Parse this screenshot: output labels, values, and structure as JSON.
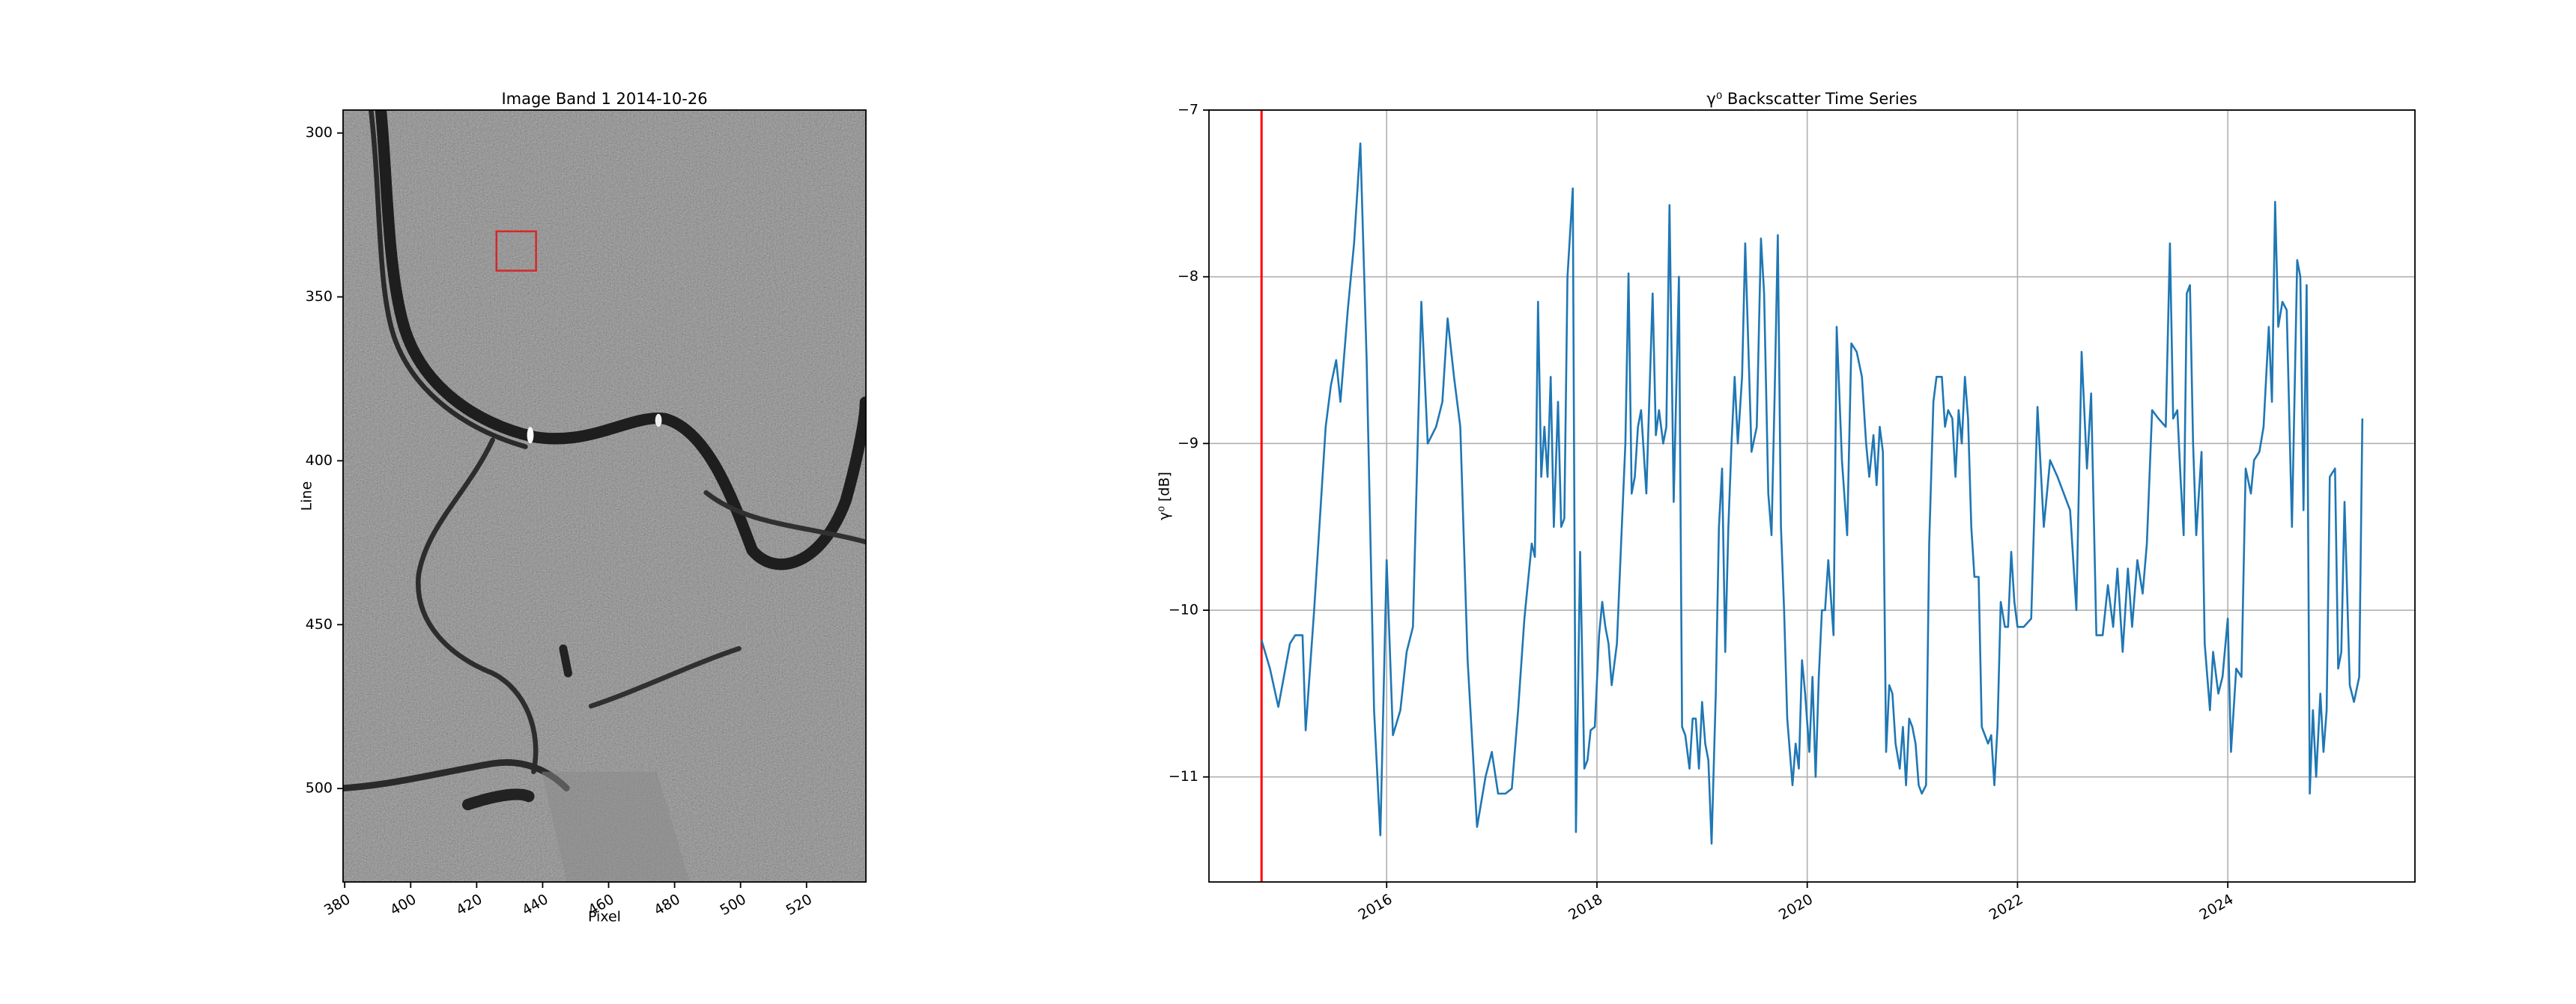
{
  "chart_data": [
    {
      "type": "image",
      "title": "Image Band 1 2014-10-26",
      "xlabel": "Pixel",
      "ylabel": "Line",
      "xlim": [
        379.5,
        538
      ],
      "ylim": [
        528.5,
        293
      ],
      "xticks": [
        380,
        400,
        420,
        440,
        460,
        480,
        500,
        520
      ],
      "yticks": [
        300,
        350,
        400,
        450,
        500
      ],
      "box": {
        "x": [
          426,
          438
        ],
        "y": [
          330,
          342
        ],
        "color": "#d62728"
      }
    },
    {
      "type": "line",
      "title": "γ⁰ Backscatter Time Series",
      "ylabel": "γ⁰ [dB]",
      "color": "#1f77b4",
      "grid": true,
      "xlim": [
        2014.31,
        2025.78
      ],
      "ylim": [
        -11.63,
        -7
      ],
      "xticks": [
        2016,
        2018,
        2020,
        2022,
        2024
      ],
      "yticks": [
        {
          "value": -7,
          "label": "−7"
        },
        {
          "value": -8,
          "label": "−8"
        },
        {
          "value": -9,
          "label": "−9"
        },
        {
          "value": -10,
          "label": "−10"
        },
        {
          "value": -11,
          "label": "−11"
        }
      ],
      "vline": {
        "x": 2014.81,
        "color": "#ff0000"
      },
      "x": [
        2014.81,
        2014.89,
        2014.97,
        2015.08,
        2015.13,
        2015.2,
        2015.23,
        2015.31,
        2015.36,
        2015.42,
        2015.47,
        2015.52,
        2015.56,
        2015.63,
        2015.69,
        2015.75,
        2015.81,
        2015.88,
        2015.94,
        2016,
        2016.06,
        2016.13,
        2016.19,
        2016.25,
        2016.33,
        2016.39,
        2016.47,
        2016.53,
        2016.58,
        2016.64,
        2016.7,
        2016.77,
        2016.86,
        2016.94,
        2017,
        2017.06,
        2017.13,
        2017.19,
        2017.25,
        2017.31,
        2017.38,
        2017.41,
        2017.44,
        2017.47,
        2017.5,
        2017.53,
        2017.56,
        2017.59,
        2017.63,
        2017.66,
        2017.69,
        2017.72,
        2017.77,
        2017.8,
        2017.84,
        2017.88,
        2017.91,
        2017.94,
        2017.98,
        2018.02,
        2018.05,
        2018.08,
        2018.11,
        2018.14,
        2018.19,
        2018.23,
        2018.27,
        2018.3,
        2018.33,
        2018.36,
        2018.39,
        2018.42,
        2018.47,
        2018.53,
        2018.56,
        2018.59,
        2018.63,
        2018.66,
        2018.69,
        2018.73,
        2018.78,
        2018.81,
        2018.84,
        2018.88,
        2018.91,
        2018.94,
        2018.97,
        2019,
        2019.03,
        2019.06,
        2019.09,
        2019.13,
        2019.16,
        2019.19,
        2019.22,
        2019.25,
        2019.28,
        2019.31,
        2019.34,
        2019.38,
        2019.41,
        2019.47,
        2019.52,
        2019.56,
        2019.59,
        2019.63,
        2019.66,
        2019.69,
        2019.72,
        2019.75,
        2019.78,
        2019.81,
        2019.86,
        2019.89,
        2019.92,
        2019.95,
        2019.98,
        2020.02,
        2020.05,
        2020.08,
        2020.11,
        2020.14,
        2020.17,
        2020.2,
        2020.25,
        2020.28,
        2020.33,
        2020.38,
        2020.42,
        2020.47,
        2020.52,
        2020.56,
        2020.59,
        2020.63,
        2020.66,
        2020.69,
        2020.72,
        2020.75,
        2020.78,
        2020.81,
        2020.84,
        2020.88,
        2020.91,
        2020.94,
        2020.97,
        2021,
        2021.03,
        2021.06,
        2021.09,
        2021.13,
        2021.16,
        2021.2,
        2021.23,
        2021.28,
        2021.31,
        2021.34,
        2021.38,
        2021.41,
        2021.44,
        2021.47,
        2021.5,
        2021.53,
        2021.56,
        2021.59,
        2021.63,
        2021.66,
        2021.69,
        2021.72,
        2021.75,
        2021.78,
        2021.81,
        2021.84,
        2021.88,
        2021.91,
        2021.94,
        2021.97,
        2022,
        2022.06,
        2022.13,
        2022.19,
        2022.25,
        2022.31,
        2022.38,
        2022.44,
        2022.5,
        2022.56,
        2022.61,
        2022.66,
        2022.7,
        2022.75,
        2022.81,
        2022.86,
        2022.91,
        2022.95,
        2023,
        2023.05,
        2023.09,
        2023.14,
        2023.19,
        2023.23,
        2023.28,
        2023.34,
        2023.41,
        2023.45,
        2023.48,
        2023.52,
        2023.55,
        2023.58,
        2023.61,
        2023.64,
        2023.67,
        2023.7,
        2023.75,
        2023.78,
        2023.83,
        2023.86,
        2023.91,
        2023.95,
        2024,
        2024.03,
        2024.08,
        2024.13,
        2024.17,
        2024.22,
        2024.25,
        2024.3,
        2024.34,
        2024.39,
        2024.42,
        2024.45,
        2024.48,
        2024.52,
        2024.56,
        2024.61,
        2024.66,
        2024.69,
        2024.72,
        2024.75,
        2024.78,
        2024.81,
        2024.84,
        2024.88,
        2024.91,
        2024.94,
        2024.97,
        2025.02,
        2025.05,
        2025.08,
        2025.11,
        2025.16,
        2025.2,
        2025.25,
        2025.28
      ],
      "values": [
        -10.18,
        -10.35,
        -10.58,
        -10.2,
        -10.15,
        -10.15,
        -10.72,
        -10.0,
        -9.5,
        -8.9,
        -8.65,
        -8.5,
        -8.75,
        -8.2,
        -7.8,
        -7.2,
        -8.5,
        -10.6,
        -11.35,
        -9.7,
        -10.75,
        -10.6,
        -10.25,
        -10.1,
        -8.15,
        -9.0,
        -8.9,
        -8.75,
        -8.25,
        -8.6,
        -8.9,
        -10.3,
        -11.3,
        -11.0,
        -10.85,
        -11.1,
        -11.1,
        -11.07,
        -10.6,
        -10.05,
        -9.6,
        -9.68,
        -8.15,
        -9.2,
        -8.9,
        -9.2,
        -8.6,
        -9.5,
        -8.75,
        -9.5,
        -9.45,
        -8.0,
        -7.47,
        -11.33,
        -9.65,
        -10.95,
        -10.9,
        -10.72,
        -10.7,
        -10.15,
        -9.95,
        -10.1,
        -10.2,
        -10.45,
        -10.2,
        -9.6,
        -9.0,
        -7.98,
        -9.3,
        -9.2,
        -8.9,
        -8.8,
        -9.3,
        -8.1,
        -8.95,
        -8.8,
        -9.0,
        -8.9,
        -7.57,
        -9.35,
        -8.0,
        -10.7,
        -10.75,
        -10.95,
        -10.65,
        -10.65,
        -10.95,
        -10.55,
        -10.8,
        -10.9,
        -11.4,
        -10.5,
        -9.5,
        -9.15,
        -10.25,
        -9.5,
        -9.0,
        -8.6,
        -9.0,
        -8.6,
        -7.8,
        -9.05,
        -8.9,
        -7.77,
        -8.1,
        -9.3,
        -9.55,
        -8.7,
        -7.75,
        -9.5,
        -10.0,
        -10.65,
        -11.05,
        -10.8,
        -10.95,
        -10.3,
        -10.5,
        -10.85,
        -10.4,
        -11.0,
        -10.4,
        -10.0,
        -10.0,
        -9.7,
        -10.15,
        -8.3,
        -9.1,
        -9.55,
        -8.4,
        -8.45,
        -8.6,
        -9.0,
        -9.2,
        -8.95,
        -9.25,
        -8.9,
        -9.05,
        -10.85,
        -10.45,
        -10.5,
        -10.8,
        -10.95,
        -10.7,
        -11.05,
        -10.65,
        -10.7,
        -10.8,
        -11.05,
        -11.1,
        -11.05,
        -9.6,
        -8.75,
        -8.6,
        -8.6,
        -8.9,
        -8.8,
        -8.85,
        -9.2,
        -8.8,
        -9.0,
        -8.6,
        -8.85,
        -9.5,
        -9.8,
        -9.8,
        -10.7,
        -10.75,
        -10.8,
        -10.75,
        -11.05,
        -10.7,
        -9.95,
        -10.1,
        -10.1,
        -9.65,
        -9.95,
        -10.1,
        -10.1,
        -10.05,
        -8.78,
        -9.5,
        -9.1,
        -9.2,
        -9.3,
        -9.4,
        -10.0,
        -8.45,
        -9.15,
        -8.7,
        -10.15,
        -10.15,
        -9.85,
        -10.1,
        -9.75,
        -10.25,
        -9.75,
        -10.1,
        -9.7,
        -9.9,
        -9.6,
        -8.8,
        -8.85,
        -8.9,
        -7.8,
        -8.85,
        -8.8,
        -9.2,
        -9.55,
        -8.1,
        -8.05,
        -9.0,
        -9.55,
        -9.05,
        -10.2,
        -10.6,
        -10.25,
        -10.5,
        -10.4,
        -10.05,
        -10.85,
        -10.35,
        -10.4,
        -9.15,
        -9.3,
        -9.1,
        -9.05,
        -8.9,
        -8.3,
        -8.75,
        -7.55,
        -8.3,
        -8.15,
        -8.2,
        -9.5,
        -7.9,
        -8.0,
        -9.4,
        -8.05,
        -11.1,
        -10.6,
        -11.0,
        -10.5,
        -10.85,
        -10.6,
        -9.2,
        -9.15,
        -10.35,
        -10.25,
        -9.35,
        -10.45,
        -10.55,
        -10.4,
        -8.85
      ]
    }
  ]
}
